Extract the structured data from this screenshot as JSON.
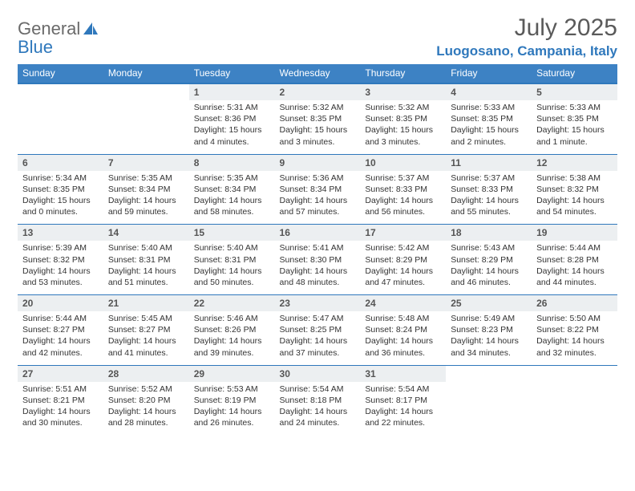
{
  "brand": {
    "word1": "General",
    "word2": "Blue"
  },
  "header": {
    "month_title": "July 2025",
    "location": "Luogosano, Campania, Italy"
  },
  "colors": {
    "header_blue": "#3d82c4",
    "rule_blue": "#2f78bc",
    "daynum_bg": "#eceff1",
    "text": "#333333",
    "logo_gray": "#6a6a6a"
  },
  "dayNames": [
    "Sunday",
    "Monday",
    "Tuesday",
    "Wednesday",
    "Thursday",
    "Friday",
    "Saturday"
  ],
  "weeks": [
    [
      null,
      null,
      {
        "n": "1",
        "sr": "Sunrise: 5:31 AM",
        "ss": "Sunset: 8:36 PM",
        "dl1": "Daylight: 15 hours",
        "dl2": "and 4 minutes."
      },
      {
        "n": "2",
        "sr": "Sunrise: 5:32 AM",
        "ss": "Sunset: 8:35 PM",
        "dl1": "Daylight: 15 hours",
        "dl2": "and 3 minutes."
      },
      {
        "n": "3",
        "sr": "Sunrise: 5:32 AM",
        "ss": "Sunset: 8:35 PM",
        "dl1": "Daylight: 15 hours",
        "dl2": "and 3 minutes."
      },
      {
        "n": "4",
        "sr": "Sunrise: 5:33 AM",
        "ss": "Sunset: 8:35 PM",
        "dl1": "Daylight: 15 hours",
        "dl2": "and 2 minutes."
      },
      {
        "n": "5",
        "sr": "Sunrise: 5:33 AM",
        "ss": "Sunset: 8:35 PM",
        "dl1": "Daylight: 15 hours",
        "dl2": "and 1 minute."
      }
    ],
    [
      {
        "n": "6",
        "sr": "Sunrise: 5:34 AM",
        "ss": "Sunset: 8:35 PM",
        "dl1": "Daylight: 15 hours",
        "dl2": "and 0 minutes."
      },
      {
        "n": "7",
        "sr": "Sunrise: 5:35 AM",
        "ss": "Sunset: 8:34 PM",
        "dl1": "Daylight: 14 hours",
        "dl2": "and 59 minutes."
      },
      {
        "n": "8",
        "sr": "Sunrise: 5:35 AM",
        "ss": "Sunset: 8:34 PM",
        "dl1": "Daylight: 14 hours",
        "dl2": "and 58 minutes."
      },
      {
        "n": "9",
        "sr": "Sunrise: 5:36 AM",
        "ss": "Sunset: 8:34 PM",
        "dl1": "Daylight: 14 hours",
        "dl2": "and 57 minutes."
      },
      {
        "n": "10",
        "sr": "Sunrise: 5:37 AM",
        "ss": "Sunset: 8:33 PM",
        "dl1": "Daylight: 14 hours",
        "dl2": "and 56 minutes."
      },
      {
        "n": "11",
        "sr": "Sunrise: 5:37 AM",
        "ss": "Sunset: 8:33 PM",
        "dl1": "Daylight: 14 hours",
        "dl2": "and 55 minutes."
      },
      {
        "n": "12",
        "sr": "Sunrise: 5:38 AM",
        "ss": "Sunset: 8:32 PM",
        "dl1": "Daylight: 14 hours",
        "dl2": "and 54 minutes."
      }
    ],
    [
      {
        "n": "13",
        "sr": "Sunrise: 5:39 AM",
        "ss": "Sunset: 8:32 PM",
        "dl1": "Daylight: 14 hours",
        "dl2": "and 53 minutes."
      },
      {
        "n": "14",
        "sr": "Sunrise: 5:40 AM",
        "ss": "Sunset: 8:31 PM",
        "dl1": "Daylight: 14 hours",
        "dl2": "and 51 minutes."
      },
      {
        "n": "15",
        "sr": "Sunrise: 5:40 AM",
        "ss": "Sunset: 8:31 PM",
        "dl1": "Daylight: 14 hours",
        "dl2": "and 50 minutes."
      },
      {
        "n": "16",
        "sr": "Sunrise: 5:41 AM",
        "ss": "Sunset: 8:30 PM",
        "dl1": "Daylight: 14 hours",
        "dl2": "and 48 minutes."
      },
      {
        "n": "17",
        "sr": "Sunrise: 5:42 AM",
        "ss": "Sunset: 8:29 PM",
        "dl1": "Daylight: 14 hours",
        "dl2": "and 47 minutes."
      },
      {
        "n": "18",
        "sr": "Sunrise: 5:43 AM",
        "ss": "Sunset: 8:29 PM",
        "dl1": "Daylight: 14 hours",
        "dl2": "and 46 minutes."
      },
      {
        "n": "19",
        "sr": "Sunrise: 5:44 AM",
        "ss": "Sunset: 8:28 PM",
        "dl1": "Daylight: 14 hours",
        "dl2": "and 44 minutes."
      }
    ],
    [
      {
        "n": "20",
        "sr": "Sunrise: 5:44 AM",
        "ss": "Sunset: 8:27 PM",
        "dl1": "Daylight: 14 hours",
        "dl2": "and 42 minutes."
      },
      {
        "n": "21",
        "sr": "Sunrise: 5:45 AM",
        "ss": "Sunset: 8:27 PM",
        "dl1": "Daylight: 14 hours",
        "dl2": "and 41 minutes."
      },
      {
        "n": "22",
        "sr": "Sunrise: 5:46 AM",
        "ss": "Sunset: 8:26 PM",
        "dl1": "Daylight: 14 hours",
        "dl2": "and 39 minutes."
      },
      {
        "n": "23",
        "sr": "Sunrise: 5:47 AM",
        "ss": "Sunset: 8:25 PM",
        "dl1": "Daylight: 14 hours",
        "dl2": "and 37 minutes."
      },
      {
        "n": "24",
        "sr": "Sunrise: 5:48 AM",
        "ss": "Sunset: 8:24 PM",
        "dl1": "Daylight: 14 hours",
        "dl2": "and 36 minutes."
      },
      {
        "n": "25",
        "sr": "Sunrise: 5:49 AM",
        "ss": "Sunset: 8:23 PM",
        "dl1": "Daylight: 14 hours",
        "dl2": "and 34 minutes."
      },
      {
        "n": "26",
        "sr": "Sunrise: 5:50 AM",
        "ss": "Sunset: 8:22 PM",
        "dl1": "Daylight: 14 hours",
        "dl2": "and 32 minutes."
      }
    ],
    [
      {
        "n": "27",
        "sr": "Sunrise: 5:51 AM",
        "ss": "Sunset: 8:21 PM",
        "dl1": "Daylight: 14 hours",
        "dl2": "and 30 minutes."
      },
      {
        "n": "28",
        "sr": "Sunrise: 5:52 AM",
        "ss": "Sunset: 8:20 PM",
        "dl1": "Daylight: 14 hours",
        "dl2": "and 28 minutes."
      },
      {
        "n": "29",
        "sr": "Sunrise: 5:53 AM",
        "ss": "Sunset: 8:19 PM",
        "dl1": "Daylight: 14 hours",
        "dl2": "and 26 minutes."
      },
      {
        "n": "30",
        "sr": "Sunrise: 5:54 AM",
        "ss": "Sunset: 8:18 PM",
        "dl1": "Daylight: 14 hours",
        "dl2": "and 24 minutes."
      },
      {
        "n": "31",
        "sr": "Sunrise: 5:54 AM",
        "ss": "Sunset: 8:17 PM",
        "dl1": "Daylight: 14 hours",
        "dl2": "and 22 minutes."
      },
      null,
      null
    ]
  ]
}
